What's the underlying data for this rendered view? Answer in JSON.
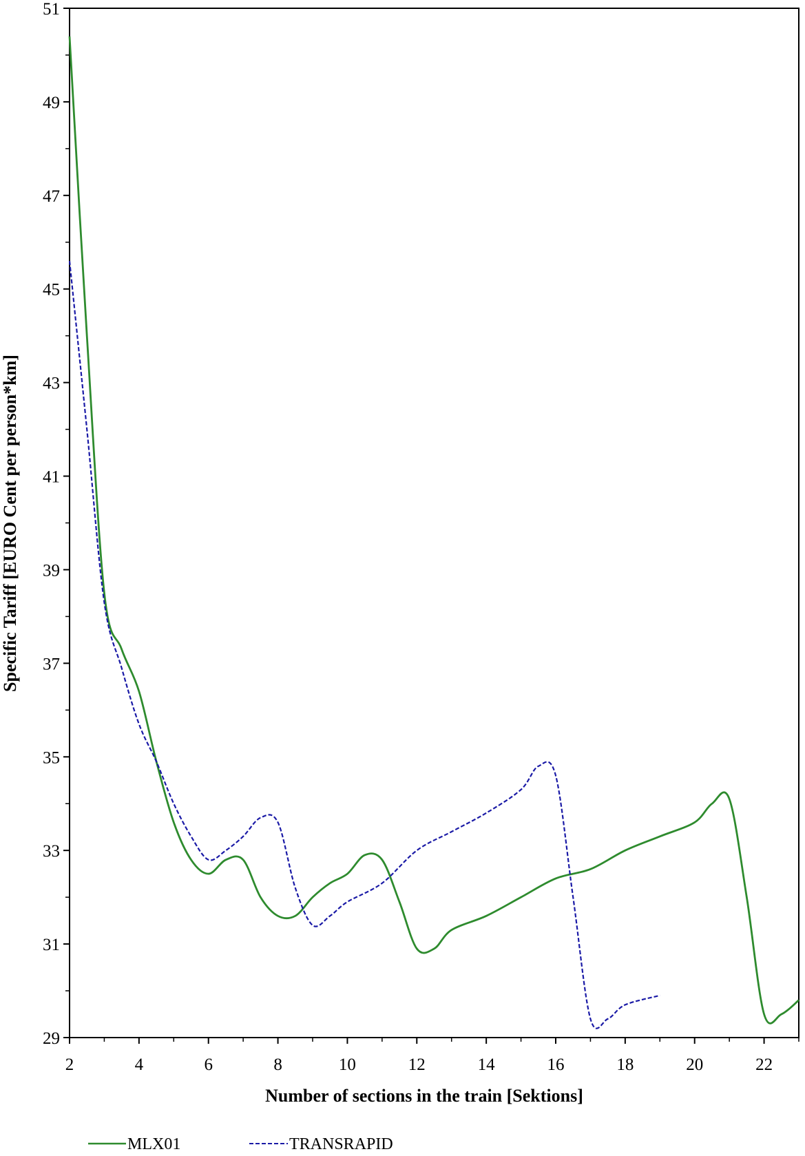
{
  "chart_data": {
    "type": "line",
    "xlabel": "Number of sections in the train [Sektions]",
    "ylabel": "Specific Tariff [EURO Cent per person*km]",
    "xlim": [
      2,
      23
    ],
    "ylim": [
      29,
      51
    ],
    "x_ticks": [
      "2",
      "4",
      "6",
      "8",
      "10",
      "12",
      "14",
      "16",
      "18",
      "20",
      "22"
    ],
    "y_ticks": [
      "29",
      "31",
      "33",
      "35",
      "37",
      "39",
      "41",
      "43",
      "45",
      "47",
      "49",
      "51"
    ],
    "grid": false,
    "legend_position": "bottom",
    "series": [
      {
        "name": "MLX01",
        "color": "#2e8b2e",
        "dash": "solid",
        "x": [
          2,
          2.5,
          3,
          3.5,
          4,
          4.5,
          5,
          5.5,
          6,
          6.5,
          7,
          7.5,
          8,
          8.5,
          9,
          9.5,
          10,
          10.5,
          11,
          11.5,
          12,
          12.5,
          13,
          14,
          15,
          16,
          17,
          18,
          19,
          20,
          20.5,
          21,
          21.5,
          22,
          22.5,
          23
        ],
        "y": [
          50.4,
          44.0,
          38.5,
          37.3,
          36.4,
          34.9,
          33.6,
          32.8,
          32.5,
          32.8,
          32.8,
          32.0,
          31.6,
          31.6,
          32.0,
          32.3,
          32.5,
          32.9,
          32.8,
          31.9,
          30.9,
          30.9,
          31.3,
          31.6,
          32.0,
          32.4,
          32.6,
          33.0,
          33.3,
          33.6,
          34.0,
          34.1,
          32.0,
          29.5,
          29.5,
          29.8
        ]
      },
      {
        "name": "TRANSRAPID",
        "color": "#1a1aa6",
        "dash": "dashed",
        "x": [
          2,
          2.5,
          3,
          3.5,
          4,
          4.5,
          5,
          5.5,
          6,
          6.5,
          7,
          7.5,
          8,
          8.5,
          9,
          9.5,
          10,
          11,
          12,
          13,
          14,
          15,
          15.5,
          16,
          16.5,
          17,
          17.5,
          18,
          19
        ],
        "y": [
          45.6,
          42.0,
          38.3,
          36.9,
          35.7,
          34.9,
          34.0,
          33.3,
          32.8,
          33.0,
          33.3,
          33.7,
          33.6,
          32.2,
          31.4,
          31.6,
          31.9,
          32.3,
          33.0,
          33.4,
          33.8,
          34.3,
          34.8,
          34.6,
          32.0,
          29.4,
          29.4,
          29.7,
          29.9
        ]
      }
    ]
  }
}
